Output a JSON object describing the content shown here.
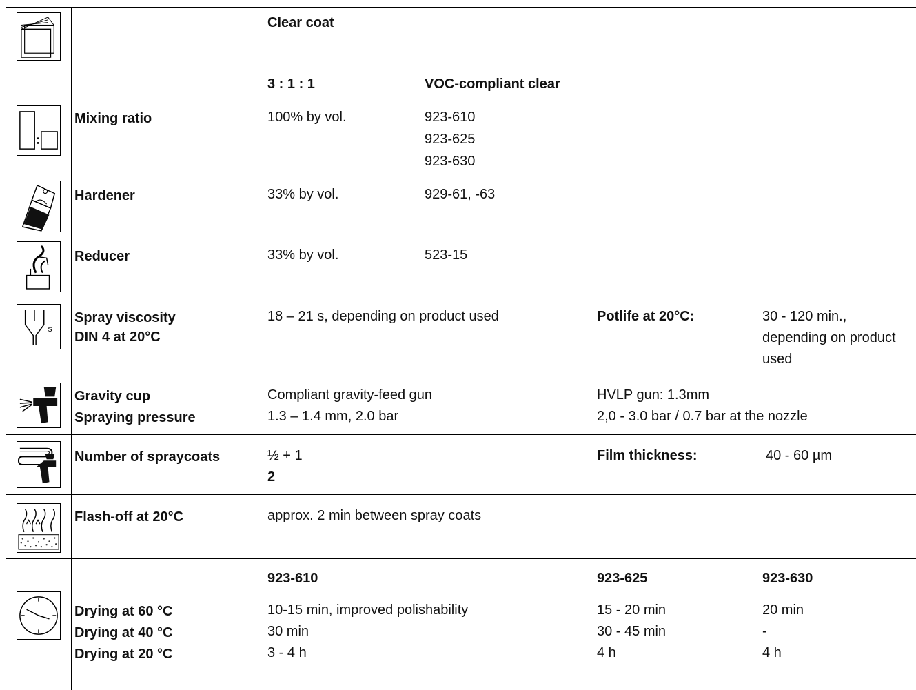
{
  "header": {
    "product": "Clear coat"
  },
  "mixing": {
    "ratio": "3 : 1 : 1",
    "product_name": "VOC-compliant clear",
    "mixing_ratio": {
      "label": "Mixing ratio",
      "amount": "100% by vol.",
      "products": [
        "923-610",
        "923-625",
        "923-630"
      ]
    },
    "hardener": {
      "label": "Hardener",
      "amount": "33% by vol.",
      "product": "929-61, -63"
    },
    "reducer": {
      "label": "Reducer",
      "amount": "33% by vol.",
      "product": "523-15"
    }
  },
  "viscosity": {
    "label_line1": "Spray viscosity",
    "label_line2": "DIN 4 at 20°C",
    "value": "18 – 21 s, depending on product used",
    "potlife_label": "Potlife at 20°C:",
    "potlife_lines": [
      "30 - 120 min.,",
      "depending on product",
      "used"
    ]
  },
  "gun": {
    "label_line1": "Gravity cup",
    "label_line2": "Spraying pressure",
    "compliant_line1": "Compliant gravity-feed gun",
    "compliant_line2": "1.3 – 1.4 mm, 2.0 bar",
    "hvlp_line1": "HVLP gun: 1.3mm",
    "hvlp_line2": "2,0 - 3.0 bar / 0.7 bar at the nozzle"
  },
  "coats": {
    "label": "Number of spraycoats",
    "value_line1": "½ + 1",
    "value_line2": "2",
    "film_label": "Film thickness:",
    "film_value": "40 - 60 µm"
  },
  "flash": {
    "label": "Flash-off at 20°C",
    "value": "approx. 2 min between spray coats"
  },
  "drying": {
    "labels": [
      "Drying at 60 °C",
      "Drying at 40 °C",
      "Drying at 20 °C"
    ],
    "columns": [
      {
        "header": "923-610",
        "values": [
          "10-15 min, improved polishability",
          "30 min",
          "3 - 4 h"
        ]
      },
      {
        "header": "923-625",
        "values": [
          "15 - 20 min",
          "30 - 45 min",
          "4 h"
        ]
      },
      {
        "header": "923-630",
        "values": [
          "20 min",
          "-",
          "4 h"
        ]
      }
    ]
  },
  "icons": [
    "clear-coat-layers-icon",
    "mixing-ratio-icon",
    "hardener-can-icon",
    "reducer-icon",
    "viscosity-cup-icon",
    "spray-gun-icon",
    "spray-coats-icon",
    "flash-off-icon",
    "clock-icon"
  ]
}
